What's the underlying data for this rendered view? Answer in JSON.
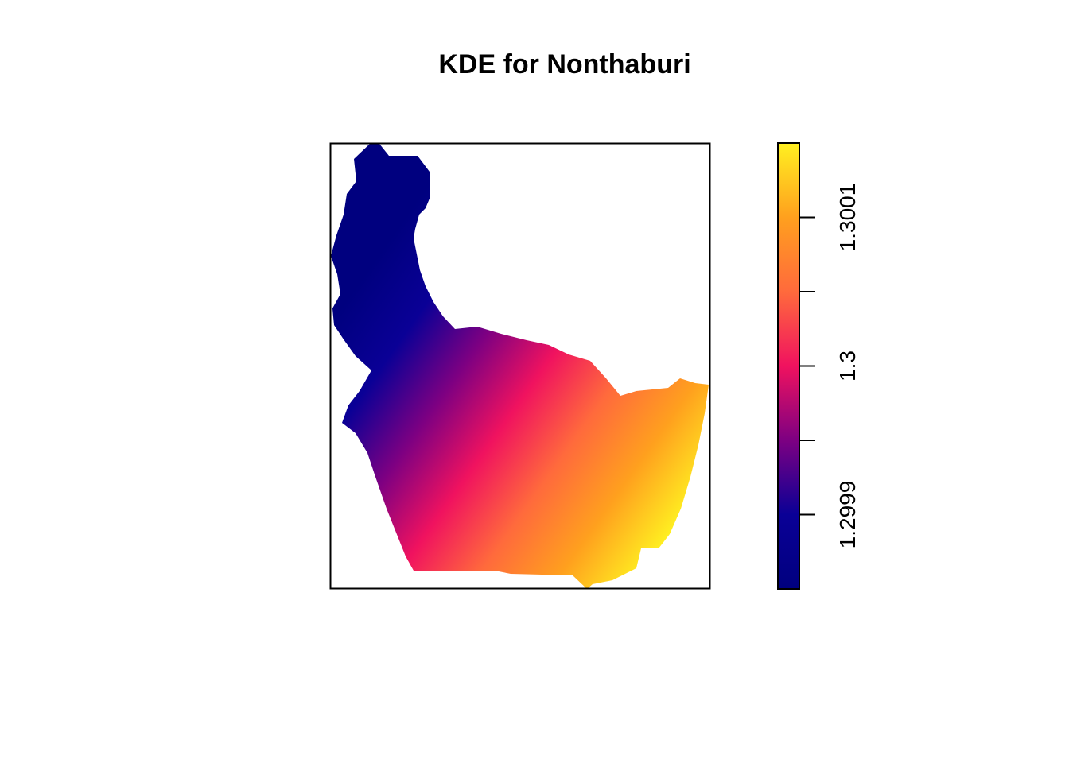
{
  "chart_data": {
    "type": "heatmap",
    "title": "KDE for Nonthaburi",
    "xlabel": "",
    "ylabel": "",
    "axes_shown": false,
    "grid": false,
    "legend": "right",
    "colorbar": {
      "range": [
        1.29985,
        1.30015
      ],
      "ticks": [
        1.2999,
        1.29995,
        1.3,
        1.30005,
        1.3001
      ],
      "tick_labels": [
        "1.2999",
        "",
        "1.3",
        "",
        "1.3001"
      ],
      "palette": [
        "#00007f",
        "#0a0096",
        "#7d0082",
        "#f0125f",
        "#ff6a3c",
        "#ffa01e",
        "#fff021"
      ]
    },
    "gradient": {
      "direction": "increases from upper-left (north-west) to lower-right (south-east)",
      "min_region": "northern arm",
      "max_region": "eastern edge"
    }
  }
}
